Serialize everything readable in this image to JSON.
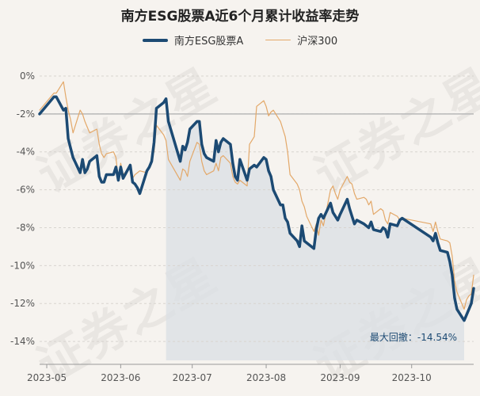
{
  "chart_data": {
    "type": "line",
    "title": "南方ESG股票A近6个月累计收益率走势",
    "xlabel": "",
    "ylabel": "",
    "ylim": [
      -15,
      0
    ],
    "yticks": [
      0,
      -2,
      -4,
      -6,
      -8,
      -10,
      -12,
      -14
    ],
    "ytick_labels": [
      "0%",
      "-2%",
      "-4%",
      "-6%",
      "-8%",
      "-10%",
      "-12%",
      "-14%"
    ],
    "xticks": [
      "2023-05",
      "2023-06",
      "2023-07",
      "2023-08",
      "2023-09",
      "2023-10"
    ],
    "x_start": "2023-04-28",
    "x_end": "2023-10-27",
    "grid": true,
    "legend_position": "top-center",
    "series": [
      {
        "name": "南方ESG股票A",
        "color": "#1c4a73",
        "style": "thick",
        "values": [
          [
            "2023-04-28",
            -2.0
          ],
          [
            "2023-05-04",
            -1.1
          ],
          [
            "2023-05-05",
            -1.1
          ],
          [
            "2023-05-08",
            -1.8
          ],
          [
            "2023-05-09",
            -1.7
          ],
          [
            "2023-05-10",
            -3.3
          ],
          [
            "2023-05-11",
            -3.8
          ],
          [
            "2023-05-12",
            -4.3
          ],
          [
            "2023-05-15",
            -5.1
          ],
          [
            "2023-05-16",
            -4.4
          ],
          [
            "2023-05-17",
            -5.1
          ],
          [
            "2023-05-18",
            -4.9
          ],
          [
            "2023-05-19",
            -4.5
          ],
          [
            "2023-05-22",
            -4.2
          ],
          [
            "2023-05-23",
            -5.3
          ],
          [
            "2023-05-24",
            -5.6
          ],
          [
            "2023-05-25",
            -5.6
          ],
          [
            "2023-05-26",
            -5.2
          ],
          [
            "2023-05-29",
            -5.2
          ],
          [
            "2023-05-30",
            -4.8
          ],
          [
            "2023-05-31",
            -5.5
          ],
          [
            "2023-06-01",
            -4.8
          ],
          [
            "2023-06-02",
            -5.4
          ],
          [
            "2023-06-05",
            -4.7
          ],
          [
            "2023-06-06",
            -5.6
          ],
          [
            "2023-06-07",
            -5.7
          ],
          [
            "2023-06-08",
            -5.9
          ],
          [
            "2023-06-09",
            -6.2
          ],
          [
            "2023-06-12",
            -5.0
          ],
          [
            "2023-06-13",
            -4.8
          ],
          [
            "2023-06-14",
            -4.5
          ],
          [
            "2023-06-15",
            -3.5
          ],
          [
            "2023-06-16",
            -1.7
          ],
          [
            "2023-06-19",
            -1.4
          ],
          [
            "2023-06-20",
            -1.2
          ],
          [
            "2023-06-21",
            -2.4
          ],
          [
            "2023-06-26",
            -4.5
          ],
          [
            "2023-06-27",
            -3.7
          ],
          [
            "2023-06-28",
            -3.9
          ],
          [
            "2023-06-29",
            -3.5
          ],
          [
            "2023-06-30",
            -2.8
          ],
          [
            "2023-07-03",
            -2.4
          ],
          [
            "2023-07-04",
            -2.4
          ],
          [
            "2023-07-05",
            -3.6
          ],
          [
            "2023-07-06",
            -4.1
          ],
          [
            "2023-07-07",
            -4.3
          ],
          [
            "2023-07-10",
            -4.5
          ],
          [
            "2023-07-11",
            -3.4
          ],
          [
            "2023-07-12",
            -4.0
          ],
          [
            "2023-07-13",
            -3.5
          ],
          [
            "2023-07-14",
            -3.3
          ],
          [
            "2023-07-17",
            -3.6
          ],
          [
            "2023-07-18",
            -4.6
          ],
          [
            "2023-07-19",
            -5.3
          ],
          [
            "2023-07-20",
            -5.5
          ],
          [
            "2023-07-21",
            -4.4
          ],
          [
            "2023-07-24",
            -5.5
          ],
          [
            "2023-07-25",
            -4.9
          ],
          [
            "2023-07-26",
            -4.8
          ],
          [
            "2023-07-27",
            -4.7
          ],
          [
            "2023-07-28",
            -4.8
          ],
          [
            "2023-07-31",
            -4.3
          ],
          [
            "2023-08-01",
            -4.4
          ],
          [
            "2023-08-02",
            -5.0
          ],
          [
            "2023-08-03",
            -5.3
          ],
          [
            "2023-08-04",
            -6.0
          ],
          [
            "2023-08-07",
            -6.8
          ],
          [
            "2023-08-08",
            -6.8
          ],
          [
            "2023-08-09",
            -7.5
          ],
          [
            "2023-08-10",
            -7.7
          ],
          [
            "2023-08-11",
            -8.3
          ],
          [
            "2023-08-14",
            -8.7
          ],
          [
            "2023-08-15",
            -9.0
          ],
          [
            "2023-08-16",
            -7.9
          ],
          [
            "2023-08-17",
            -8.7
          ],
          [
            "2023-08-18",
            -8.8
          ],
          [
            "2023-08-21",
            -9.1
          ],
          [
            "2023-08-22",
            -8.1
          ],
          [
            "2023-08-23",
            -7.5
          ],
          [
            "2023-08-24",
            -7.3
          ],
          [
            "2023-08-25",
            -7.5
          ],
          [
            "2023-08-28",
            -6.7
          ],
          [
            "2023-08-29",
            -7.2
          ],
          [
            "2023-08-30",
            -7.4
          ],
          [
            "2023-08-31",
            -7.6
          ],
          [
            "2023-09-01",
            -7.3
          ],
          [
            "2023-09-04",
            -6.5
          ],
          [
            "2023-09-05",
            -7.0
          ],
          [
            "2023-09-06",
            -7.4
          ],
          [
            "2023-09-07",
            -7.8
          ],
          [
            "2023-09-08",
            -7.6
          ],
          [
            "2023-09-11",
            -7.8
          ],
          [
            "2023-09-12",
            -7.9
          ],
          [
            "2023-09-13",
            -8.0
          ],
          [
            "2023-09-14",
            -7.7
          ],
          [
            "2023-09-15",
            -8.1
          ],
          [
            "2023-09-18",
            -8.2
          ],
          [
            "2023-09-19",
            -8.0
          ],
          [
            "2023-09-20",
            -8.1
          ],
          [
            "2023-09-21",
            -8.5
          ],
          [
            "2023-09-22",
            -7.8
          ],
          [
            "2023-09-25",
            -7.9
          ],
          [
            "2023-09-26",
            -7.6
          ],
          [
            "2023-09-27",
            -7.5
          ],
          [
            "2023-10-09",
            -8.5
          ],
          [
            "2023-10-10",
            -8.7
          ],
          [
            "2023-10-11",
            -8.3
          ],
          [
            "2023-10-12",
            -8.8
          ],
          [
            "2023-10-13",
            -9.2
          ],
          [
            "2023-10-16",
            -9.3
          ],
          [
            "2023-10-17",
            -9.8
          ],
          [
            "2023-10-18",
            -10.5
          ],
          [
            "2023-10-19",
            -11.7
          ],
          [
            "2023-10-20",
            -12.3
          ],
          [
            "2023-10-23",
            -12.9
          ],
          [
            "2023-10-24",
            -12.6
          ],
          [
            "2023-10-25",
            -12.3
          ],
          [
            "2023-10-26",
            -12.0
          ],
          [
            "2023-10-27",
            -11.2
          ]
        ]
      },
      {
        "name": "沪深300",
        "color": "#e3a869",
        "style": "thin",
        "values": [
          [
            "2023-04-28",
            -1.8
          ],
          [
            "2023-05-04",
            -0.9
          ],
          [
            "2023-05-05",
            -0.9
          ],
          [
            "2023-05-08",
            -0.3
          ],
          [
            "2023-05-09",
            -1.1
          ],
          [
            "2023-05-10",
            -1.8
          ],
          [
            "2023-05-11",
            -2.3
          ],
          [
            "2023-05-12",
            -3.0
          ],
          [
            "2023-05-15",
            -1.8
          ],
          [
            "2023-05-16",
            -2.0
          ],
          [
            "2023-05-17",
            -2.4
          ],
          [
            "2023-05-18",
            -2.7
          ],
          [
            "2023-05-19",
            -3.0
          ],
          [
            "2023-05-22",
            -2.8
          ],
          [
            "2023-05-23",
            -3.6
          ],
          [
            "2023-05-24",
            -4.1
          ],
          [
            "2023-05-25",
            -4.3
          ],
          [
            "2023-05-26",
            -4.1
          ],
          [
            "2023-05-29",
            -4.0
          ],
          [
            "2023-05-30",
            -4.3
          ],
          [
            "2023-05-31",
            -5.5
          ],
          [
            "2023-06-01",
            -4.6
          ],
          [
            "2023-06-02",
            -5.2
          ],
          [
            "2023-06-05",
            -4.8
          ],
          [
            "2023-06-06",
            -5.4
          ],
          [
            "2023-06-07",
            -5.2
          ],
          [
            "2023-06-08",
            -5.1
          ],
          [
            "2023-06-09",
            -5.0
          ],
          [
            "2023-06-12",
            -5.1
          ],
          [
            "2023-06-13",
            -4.8
          ],
          [
            "2023-06-14",
            -4.3
          ],
          [
            "2023-06-15",
            -4.0
          ],
          [
            "2023-06-16",
            -2.6
          ],
          [
            "2023-06-19",
            -3.1
          ],
          [
            "2023-06-20",
            -3.4
          ],
          [
            "2023-06-21",
            -4.4
          ],
          [
            "2023-06-26",
            -5.5
          ],
          [
            "2023-06-27",
            -4.9
          ],
          [
            "2023-06-28",
            -5.0
          ],
          [
            "2023-06-29",
            -5.3
          ],
          [
            "2023-06-30",
            -4.5
          ],
          [
            "2023-07-03",
            -3.5
          ],
          [
            "2023-07-04",
            -3.6
          ],
          [
            "2023-07-05",
            -4.5
          ],
          [
            "2023-07-06",
            -5.0
          ],
          [
            "2023-07-07",
            -5.2
          ],
          [
            "2023-07-10",
            -5.0
          ],
          [
            "2023-07-11",
            -4.6
          ],
          [
            "2023-07-12",
            -5.0
          ],
          [
            "2023-07-13",
            -4.3
          ],
          [
            "2023-07-14",
            -4.2
          ],
          [
            "2023-07-17",
            -4.6
          ],
          [
            "2023-07-18",
            -5.3
          ],
          [
            "2023-07-19",
            -5.6
          ],
          [
            "2023-07-20",
            -5.7
          ],
          [
            "2023-07-21",
            -5.5
          ],
          [
            "2023-07-24",
            -5.8
          ],
          [
            "2023-07-25",
            -3.6
          ],
          [
            "2023-07-26",
            -3.4
          ],
          [
            "2023-07-27",
            -3.2
          ],
          [
            "2023-07-28",
            -1.6
          ],
          [
            "2023-07-31",
            -1.3
          ],
          [
            "2023-08-01",
            -1.6
          ],
          [
            "2023-08-02",
            -2.1
          ],
          [
            "2023-08-03",
            -1.9
          ],
          [
            "2023-08-04",
            -1.8
          ],
          [
            "2023-08-07",
            -2.4
          ],
          [
            "2023-08-08",
            -2.8
          ],
          [
            "2023-08-09",
            -3.2
          ],
          [
            "2023-08-10",
            -4.0
          ],
          [
            "2023-08-11",
            -5.2
          ],
          [
            "2023-08-14",
            -5.7
          ],
          [
            "2023-08-15",
            -6.0
          ],
          [
            "2023-08-16",
            -6.6
          ],
          [
            "2023-08-17",
            -6.9
          ],
          [
            "2023-08-18",
            -7.4
          ],
          [
            "2023-08-21",
            -8.2
          ],
          [
            "2023-08-22",
            -7.8
          ],
          [
            "2023-08-23",
            -8.4
          ],
          [
            "2023-08-24",
            -7.6
          ],
          [
            "2023-08-25",
            -7.9
          ],
          [
            "2023-08-28",
            -6.0
          ],
          [
            "2023-08-29",
            -5.8
          ],
          [
            "2023-08-30",
            -6.2
          ],
          [
            "2023-08-31",
            -6.5
          ],
          [
            "2023-09-01",
            -6.0
          ],
          [
            "2023-09-04",
            -5.3
          ],
          [
            "2023-09-05",
            -5.6
          ],
          [
            "2023-09-06",
            -5.7
          ],
          [
            "2023-09-07",
            -6.2
          ],
          [
            "2023-09-08",
            -6.5
          ],
          [
            "2023-09-11",
            -6.4
          ],
          [
            "2023-09-12",
            -6.5
          ],
          [
            "2023-09-13",
            -6.8
          ],
          [
            "2023-09-14",
            -6.6
          ],
          [
            "2023-09-15",
            -7.3
          ],
          [
            "2023-09-18",
            -7.0
          ],
          [
            "2023-09-19",
            -7.1
          ],
          [
            "2023-09-20",
            -7.6
          ],
          [
            "2023-09-21",
            -7.8
          ],
          [
            "2023-09-22",
            -7.2
          ],
          [
            "2023-09-25",
            -7.4
          ],
          [
            "2023-09-26",
            -7.6
          ],
          [
            "2023-09-27",
            -7.5
          ],
          [
            "2023-10-09",
            -7.8
          ],
          [
            "2023-10-10",
            -8.2
          ],
          [
            "2023-10-11",
            -7.7
          ],
          [
            "2023-10-12",
            -8.2
          ],
          [
            "2023-10-13",
            -8.6
          ],
          [
            "2023-10-16",
            -8.7
          ],
          [
            "2023-10-17",
            -8.8
          ],
          [
            "2023-10-18",
            -9.5
          ],
          [
            "2023-10-19",
            -10.8
          ],
          [
            "2023-10-20",
            -11.4
          ],
          [
            "2023-10-23",
            -12.3
          ],
          [
            "2023-10-24",
            -11.8
          ],
          [
            "2023-10-25",
            -11.6
          ],
          [
            "2023-10-26",
            -11.5
          ],
          [
            "2023-10-27",
            -10.5
          ]
        ]
      }
    ],
    "reference_line_y": -2,
    "drawdown_shade": {
      "start": "2023-06-20",
      "end": "2023-10-23",
      "color": "#d9dfe4"
    },
    "annotation": {
      "label": "最大回撤：-14.54%",
      "value": -14.54
    }
  },
  "watermark": [
    "证",
    "券",
    "之",
    "星"
  ]
}
